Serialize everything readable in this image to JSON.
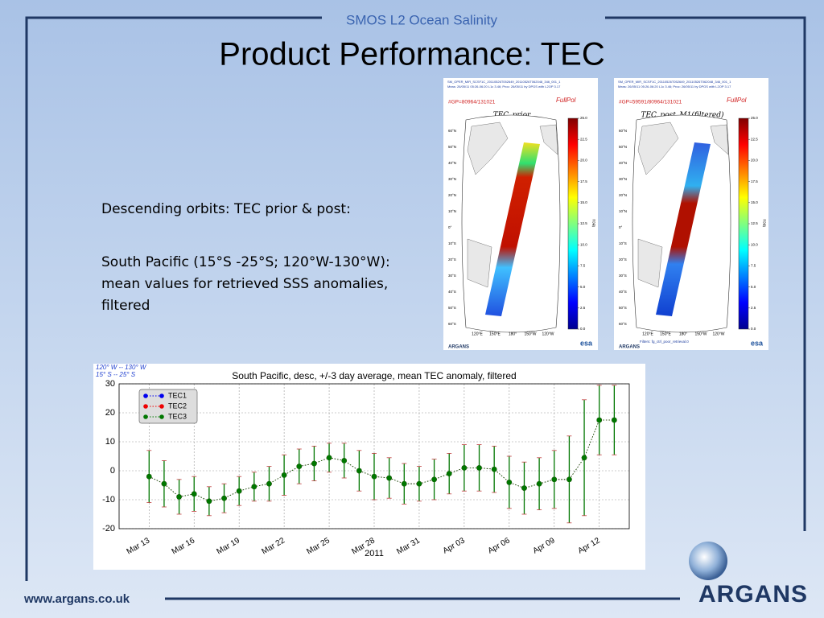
{
  "header": "SMOS L2 Ocean Salinity",
  "title": "Product Performance: TEC",
  "text": [
    "Descending orbits: TEC prior & post:",
    "South Pacific (15°S -25°S; 120°W-130°W): mean values for retrieved SSS anomalies,  filtered"
  ],
  "footer": "www.argans.co.uk",
  "logo": "ARGANS",
  "maps": {
    "panels": [
      {
        "file": "SM_OPER_MIR_SCSF1C_20110526T052649_20110526T062048_346_001_1",
        "meas": "Meas: 26/05/11 05:26-06:20 L1c 3.46; Proc: 26/05/11 by DPGS with L2OP 3.17",
        "gp": "#GP=80964/131021",
        "mode": "FullPol",
        "title": "TEC_prior"
      },
      {
        "file": "SM_OPER_MIR_SCSF1C_20110526T052649_20110526T062048_346_001_1",
        "meas": "Meas: 26/05/11 05:26-06:20 L1c 3.46; Proc: 26/05/11 by DPGS with L2OP 3.17",
        "gp": "#GP=59591/80964/131021",
        "mode": "FullPol",
        "title": "TEC_post_M1(filtered)",
        "filters": "Filters: fg_ctrl_poor_retrieval.0"
      }
    ],
    "lat_labels": [
      "60°N",
      "50°N",
      "40°N",
      "30°N",
      "20°N",
      "10°N",
      "0°",
      "10°S",
      "20°S",
      "30°S",
      "40°S",
      "50°S",
      "60°S"
    ],
    "lon_labels": [
      "120°E",
      "150°E",
      "180°",
      "150°W",
      "120°W"
    ],
    "colorbar_ticks": [
      {
        "value": 0,
        "label": "0.0"
      },
      {
        "value": 2.5,
        "label": "2.5"
      },
      {
        "value": 5,
        "label": "5.0"
      },
      {
        "value": 7.5,
        "label": "7.5"
      },
      {
        "value": 10,
        "label": "10.0"
      },
      {
        "value": 12.5,
        "label": "12.5"
      },
      {
        "value": 15,
        "label": "15.0"
      },
      {
        "value": 17.5,
        "label": "17.5"
      },
      {
        "value": 20,
        "label": "20.0"
      },
      {
        "value": 22.5,
        "label": "22.5"
      },
      {
        "value": 25,
        "label": "25.0"
      }
    ],
    "colorbar_lim": [
      0,
      25
    ],
    "unit": "tecu",
    "logo_left": "ARGANS",
    "logo_right": "esa"
  },
  "chart_data": {
    "type": "line",
    "title": "South Pacific, desc, +/-3 day average, mean TEC anomaly, filtered",
    "annotations": [
      "120° W -- 130° W",
      "15° S -- 25° S"
    ],
    "x_label": "2011",
    "x": [
      "2011-03-13",
      "2011-03-14",
      "2011-03-15",
      "2011-03-16",
      "2011-03-17",
      "2011-03-18",
      "2011-03-19",
      "2011-03-20",
      "2011-03-21",
      "2011-03-22",
      "2011-03-23",
      "2011-03-24",
      "2011-03-25",
      "2011-03-26",
      "2011-03-27",
      "2011-03-28",
      "2011-03-29",
      "2011-03-30",
      "2011-03-31",
      "2011-04-01",
      "2011-04-02",
      "2011-04-03",
      "2011-04-04",
      "2011-04-05",
      "2011-04-06",
      "2011-04-07",
      "2011-04-08",
      "2011-04-09",
      "2011-04-10",
      "2011-04-11",
      "2011-04-12",
      "2011-04-13"
    ],
    "series": [
      {
        "name": "TEC1",
        "color": "#0000ee",
        "values": [
          -2,
          -4.5,
          -9,
          -8,
          -10.5,
          -9.5,
          -7,
          -5.5,
          -4.5,
          -1.5,
          1.5,
          2.5,
          4.5,
          3.5,
          0,
          -2,
          -2.5,
          -4.5,
          -4.5,
          -3,
          -1,
          1,
          1,
          0.5,
          -4,
          -6,
          -4.5,
          -3,
          -3,
          4.5,
          17.5,
          17.5
        ]
      },
      {
        "name": "TEC2",
        "color": "#ee0000",
        "values": [
          -2,
          -4.5,
          -9,
          -8,
          -10.5,
          -9.5,
          -7,
          -5.5,
          -4.5,
          -1.5,
          1.5,
          2.5,
          4.5,
          3.5,
          0,
          -2,
          -2.5,
          -4.5,
          -4.5,
          -3,
          -1,
          1,
          1,
          0.5,
          -4,
          -6,
          -4.5,
          -3,
          -3,
          4.5,
          17.5,
          17.5
        ]
      },
      {
        "name": "TEC3",
        "color": "#007700",
        "values": [
          -2,
          -4.5,
          -9,
          -8,
          -10.5,
          -9.5,
          -7,
          -5.5,
          -4.5,
          -1.5,
          1.5,
          2.5,
          4.5,
          3.5,
          0,
          -2,
          -2.5,
          -4.5,
          -4.5,
          -3,
          -1,
          1,
          1,
          0.5,
          -4,
          -6,
          -4.5,
          -3,
          -3,
          4.5,
          17.5,
          17.5
        ],
        "errors": [
          9,
          8,
          6,
          6,
          5,
          5,
          5,
          5,
          6,
          7,
          6,
          6,
          5,
          6,
          7,
          8,
          7,
          7,
          6,
          7,
          7,
          8,
          8,
          8,
          9,
          9,
          9,
          10,
          15,
          20,
          12,
          12
        ]
      }
    ],
    "xlim": [
      "2011-03-11",
      "2011-04-14"
    ],
    "xticks": [
      {
        "value": "2011-03-13",
        "label": "Mar 13"
      },
      {
        "value": "2011-03-16",
        "label": "Mar 16"
      },
      {
        "value": "2011-03-19",
        "label": "Mar 19"
      },
      {
        "value": "2011-03-22",
        "label": "Mar 22"
      },
      {
        "value": "2011-03-25",
        "label": "Mar 25"
      },
      {
        "value": "2011-03-28",
        "label": "Mar 28"
      },
      {
        "value": "2011-03-31",
        "label": "Mar 31"
      },
      {
        "value": "2011-04-03",
        "label": "Apr 03"
      },
      {
        "value": "2011-04-06",
        "label": "Apr 06"
      },
      {
        "value": "2011-04-09",
        "label": "Apr 09"
      },
      {
        "value": "2011-04-12",
        "label": "Apr 12"
      }
    ],
    "ylim": [
      -20,
      30
    ],
    "yticks": [
      -20,
      -10,
      0,
      10,
      20,
      30
    ],
    "grid": true,
    "legend": "upper left"
  }
}
